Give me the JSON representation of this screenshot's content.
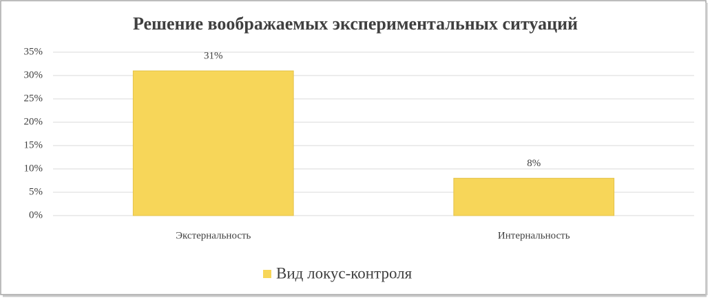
{
  "chart_data": {
    "type": "bar",
    "title": "Решение воображаемых экспериментальных ситуаций",
    "categories": [
      "Экстернальность",
      "Интернальность"
    ],
    "series": [
      {
        "name": "Вид локус-контроля",
        "color": "#f7d659",
        "values": [
          31,
          8
        ],
        "value_labels": [
          "31%",
          "8%"
        ]
      }
    ],
    "ylim": [
      0,
      35
    ],
    "yticks": [
      {
        "value": 0,
        "label": "0%"
      },
      {
        "value": 5,
        "label": "5%"
      },
      {
        "value": 10,
        "label": "10%"
      },
      {
        "value": 15,
        "label": "15%"
      },
      {
        "value": 20,
        "label": "20%"
      },
      {
        "value": 25,
        "label": "25%"
      },
      {
        "value": 30,
        "label": "30%"
      },
      {
        "value": 35,
        "label": "35%"
      }
    ],
    "grid": true,
    "legend": "bottom"
  }
}
